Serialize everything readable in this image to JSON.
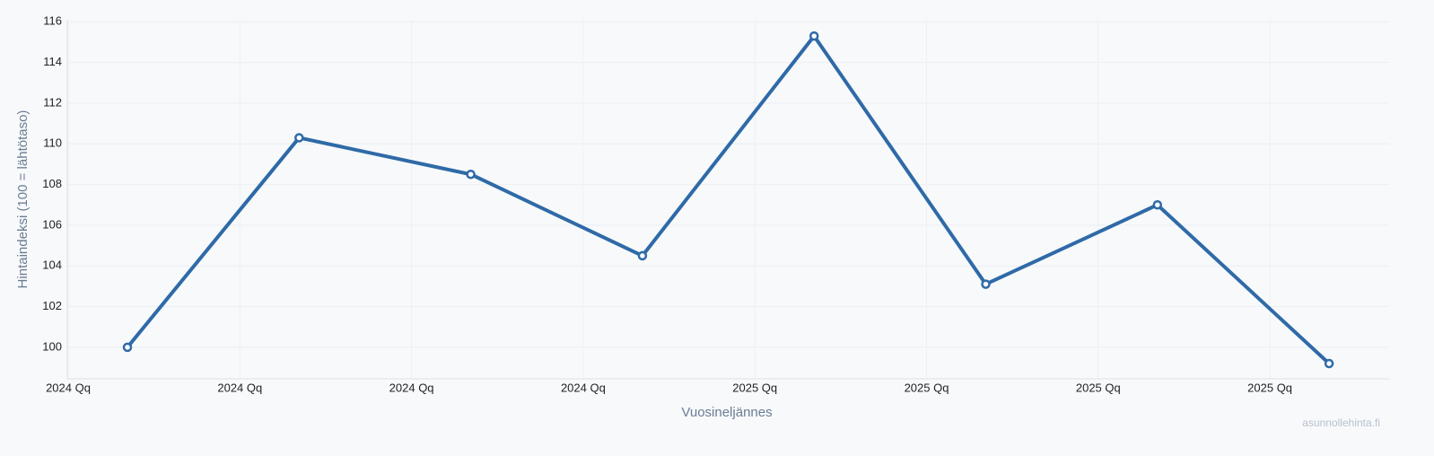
{
  "chart_data": {
    "type": "line",
    "x_label": "Vuosineljännes",
    "y_label": "Hintaindeksi (100 = lähtötaso)",
    "watermark": "asunnollehinta.fi",
    "categories": [
      "2024 Qq",
      "2024 Qq",
      "2024 Qq",
      "2024 Qq",
      "2025 Qq",
      "2025 Qq",
      "2025 Qq",
      "2025 Qq"
    ],
    "series": [
      {
        "name": "Hintaindeksi",
        "color": "#2f6aa7",
        "values": [
          100,
          110.3,
          108.5,
          104.5,
          115.3,
          103.1,
          107,
          99.2
        ]
      }
    ],
    "ylim": [
      98.45,
      116.1
    ],
    "yticks": [
      100,
      102,
      104,
      106,
      108,
      110,
      112,
      114,
      116
    ],
    "grid": true
  }
}
